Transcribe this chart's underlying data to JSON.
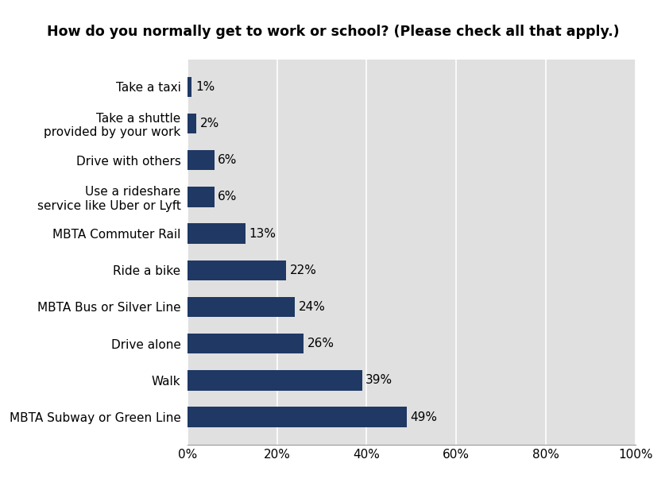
{
  "title": "How do you normally get to work or school? (Please check all that apply.)",
  "categories": [
    "MBTA Subway or Green Line",
    "Walk",
    "Drive alone",
    "MBTA Bus or Silver Line",
    "Ride a bike",
    "MBTA Commuter Rail",
    "Use a rideshare\nservice like Uber or Lyft",
    "Drive with others",
    "Take a shuttle\nprovided by your work",
    "Take a taxi"
  ],
  "values": [
    49,
    39,
    26,
    24,
    22,
    13,
    6,
    6,
    2,
    1
  ],
  "bar_color": "#1F3864",
  "plot_bg_color": "#E0E0E0",
  "fig_bg_color": "#FFFFFF",
  "label_color": "#000000",
  "title_fontsize": 12.5,
  "label_fontsize": 11,
  "tick_fontsize": 11,
  "xlim": [
    0,
    100
  ],
  "xticks": [
    0,
    20,
    40,
    60,
    80,
    100
  ],
  "xtick_labels": [
    "0%",
    "20%",
    "40%",
    "60%",
    "80%",
    "100%"
  ],
  "bar_height": 0.55
}
